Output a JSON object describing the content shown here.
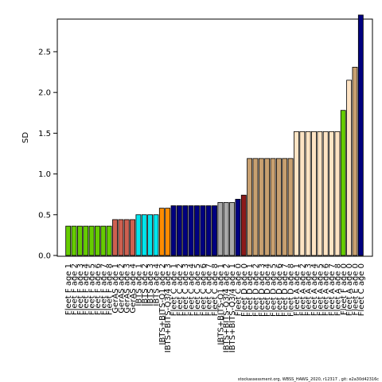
{
  "chart_data": {
    "type": "bar",
    "title": "",
    "xlabel": "",
    "ylabel": "SD",
    "ylim": [
      0,
      2.9
    ],
    "yticks": [
      0.0,
      0.5,
      1.0,
      1.5,
      2.0,
      2.5
    ],
    "ytick_labels": [
      "0.0",
      "0.5",
      "1.0",
      "1.5",
      "2.0",
      "2.5"
    ],
    "grid": false,
    "categories": [
      "Fleet F age 1",
      "Fleet F age 2",
      "Fleet F age 3",
      "Fleet F age 4",
      "Fleet F age 5",
      "Fleet F age 6",
      "Fleet F age 7",
      "Fleet F age 8",
      "GerAS age 1",
      "GerAS age 2",
      "GerAS age 3",
      "GerAS age 4",
      "IBTS age 1",
      "IBTS age 2",
      "IBTS age 3",
      "IBTS age 4",
      "IBTS+BITS-Q1 age 2",
      "IBTS+BITS-Q3/4 age 3",
      "Fleet C age 1",
      "Fleet C age 2",
      "Fleet C age 3",
      "Fleet C age 4",
      "Fleet C age 5",
      "Fleet C age 6",
      "Fleet C age 7",
      "Fleet C age 8",
      "IBTS+BITS-Q1 age 1",
      "IBTS+BITS-Q3/4 age 2",
      "IBTS+BITS-Q3/4 age 1",
      "Fleet C age 0",
      "Fleet D age 0",
      "Fleet D age 1",
      "Fleet D age 2",
      "Fleet D age 3",
      "Fleet D age 4",
      "Fleet D age 5",
      "Fleet D age 6",
      "Fleet D age 7",
      "Fleet D age 8",
      "Fleet A age 1",
      "Fleet A age 2",
      "Fleet A age 3",
      "Fleet A age 4",
      "Fleet A age 5",
      "Fleet A age 6",
      "Fleet A age 7",
      "Fleet A age 8",
      "Fleet F age 0",
      "Fleet A age 0",
      "Fleet E age 0",
      "Fleet C age 0"
    ],
    "values": [
      0.36,
      0.36,
      0.36,
      0.36,
      0.36,
      0.36,
      0.36,
      0.36,
      0.44,
      0.44,
      0.44,
      0.44,
      0.5,
      0.5,
      0.5,
      0.5,
      0.58,
      0.58,
      0.61,
      0.61,
      0.61,
      0.61,
      0.61,
      0.61,
      0.61,
      0.61,
      0.65,
      0.65,
      0.65,
      0.69,
      0.74,
      1.19,
      1.19,
      1.19,
      1.19,
      1.19,
      1.19,
      1.19,
      1.19,
      1.52,
      1.52,
      1.52,
      1.52,
      1.52,
      1.52,
      1.52,
      1.52,
      1.78,
      2.15,
      2.31,
      2.95
    ],
    "colors": [
      "#66cc00",
      "#66cc00",
      "#66cc00",
      "#66cc00",
      "#66cc00",
      "#66cc00",
      "#66cc00",
      "#66cc00",
      "#cd6050",
      "#cd6050",
      "#cd6050",
      "#cd6050",
      "#00e5ee",
      "#00e5ee",
      "#00e5ee",
      "#00e5ee",
      "#ff8c00",
      "#ff8c00",
      "#000080",
      "#000080",
      "#000080",
      "#000080",
      "#000080",
      "#000080",
      "#000080",
      "#000080",
      "#a9a9a9",
      "#a9a9a9",
      "#a9a9a9",
      "#000080",
      "#8b1a1a",
      "#c8a070",
      "#c8a070",
      "#c8a070",
      "#c8a070",
      "#c8a070",
      "#c8a070",
      "#c8a070",
      "#c8a070",
      "#ffe4c4",
      "#ffe4c4",
      "#ffe4c4",
      "#ffe4c4",
      "#ffe4c4",
      "#ffe4c4",
      "#ffe4c4",
      "#ffe4c4",
      "#66cc00",
      "#ffe4c4",
      "#c8a070",
      "#000080"
    ]
  },
  "footer": "stockassessment.org, WBSS_HAWG_2020, r12317 , git: e2a30d42316c"
}
